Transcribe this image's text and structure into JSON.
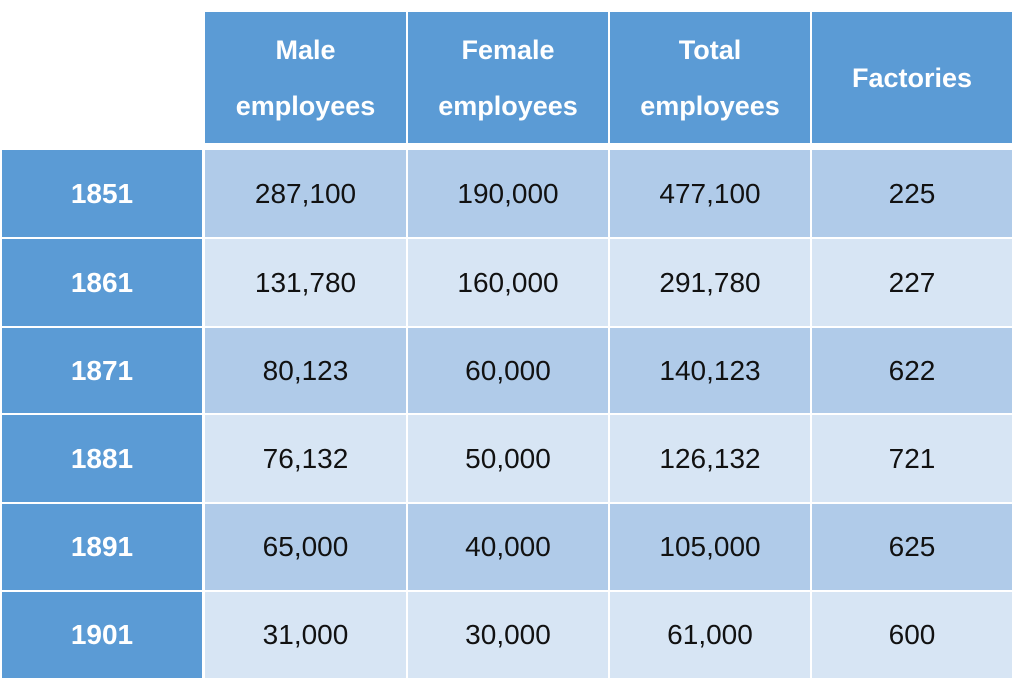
{
  "table": {
    "columns": [
      "Male\nemployees",
      "Female\nemployees",
      "Total\nemployees",
      "Factories"
    ],
    "rows": [
      {
        "year": "1851",
        "male": "287,100",
        "female": "190,000",
        "total": "477,100",
        "factories": "225"
      },
      {
        "year": "1861",
        "male": "131,780",
        "female": "160,000",
        "total": "291,780",
        "factories": "227"
      },
      {
        "year": "1871",
        "male": "80,123",
        "female": "60,000",
        "total": "140,123",
        "factories": "622"
      },
      {
        "year": "1881",
        "male": "76,132",
        "female": "50,000",
        "total": "126,132",
        "factories": "721"
      },
      {
        "year": "1891",
        "male": "65,000",
        "female": "40,000",
        "total": "105,000",
        "factories": "625"
      },
      {
        "year": "1901",
        "male": "31,000",
        "female": "30,000",
        "total": "61,000",
        "factories": "600"
      }
    ],
    "colors": {
      "header_blue": "#5b9bd5",
      "row_dark": "#b0cbe9",
      "row_light": "#d7e5f4"
    }
  }
}
